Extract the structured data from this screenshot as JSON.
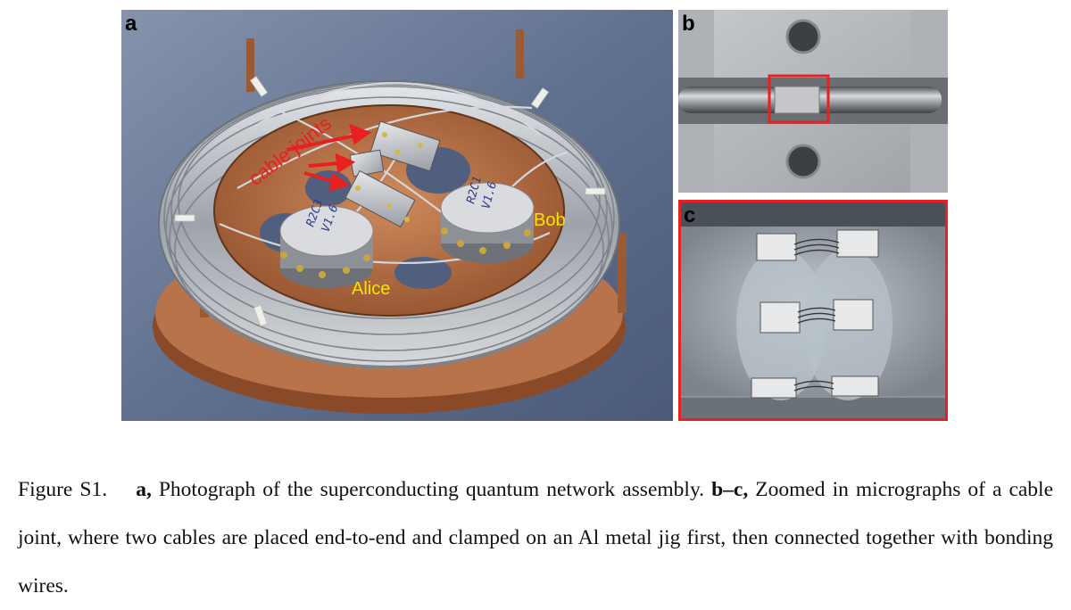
{
  "figure": {
    "panels": [
      {
        "letter": "a",
        "labels": {
          "joints": "cable joints",
          "alice": "Alice",
          "bob": "Bob"
        },
        "module_marks": {
          "alice_module": "R2C3\nV1.6",
          "bob_module": "R2C1\nV1.6"
        }
      },
      {
        "letter": "b"
      },
      {
        "letter": "c"
      }
    ],
    "caption": {
      "label": "Figure S1.",
      "parts": [
        {
          "bold": "a,",
          "text": "Photograph of the superconducting quantum network assembly."
        },
        {
          "bold": "b–c,",
          "text": "Zoomed in micrographs of a cable joint, where two cables are placed end-to-end and clamped on an Al metal jig first, then connected together with bonding wires."
        }
      ]
    },
    "colors": {
      "copper": "#b8734a",
      "wire": "#c9ccd0",
      "annotation_red": "#e8201f",
      "annotation_yellow": "#f5e400",
      "background_blue": "#5f6f8c"
    }
  }
}
